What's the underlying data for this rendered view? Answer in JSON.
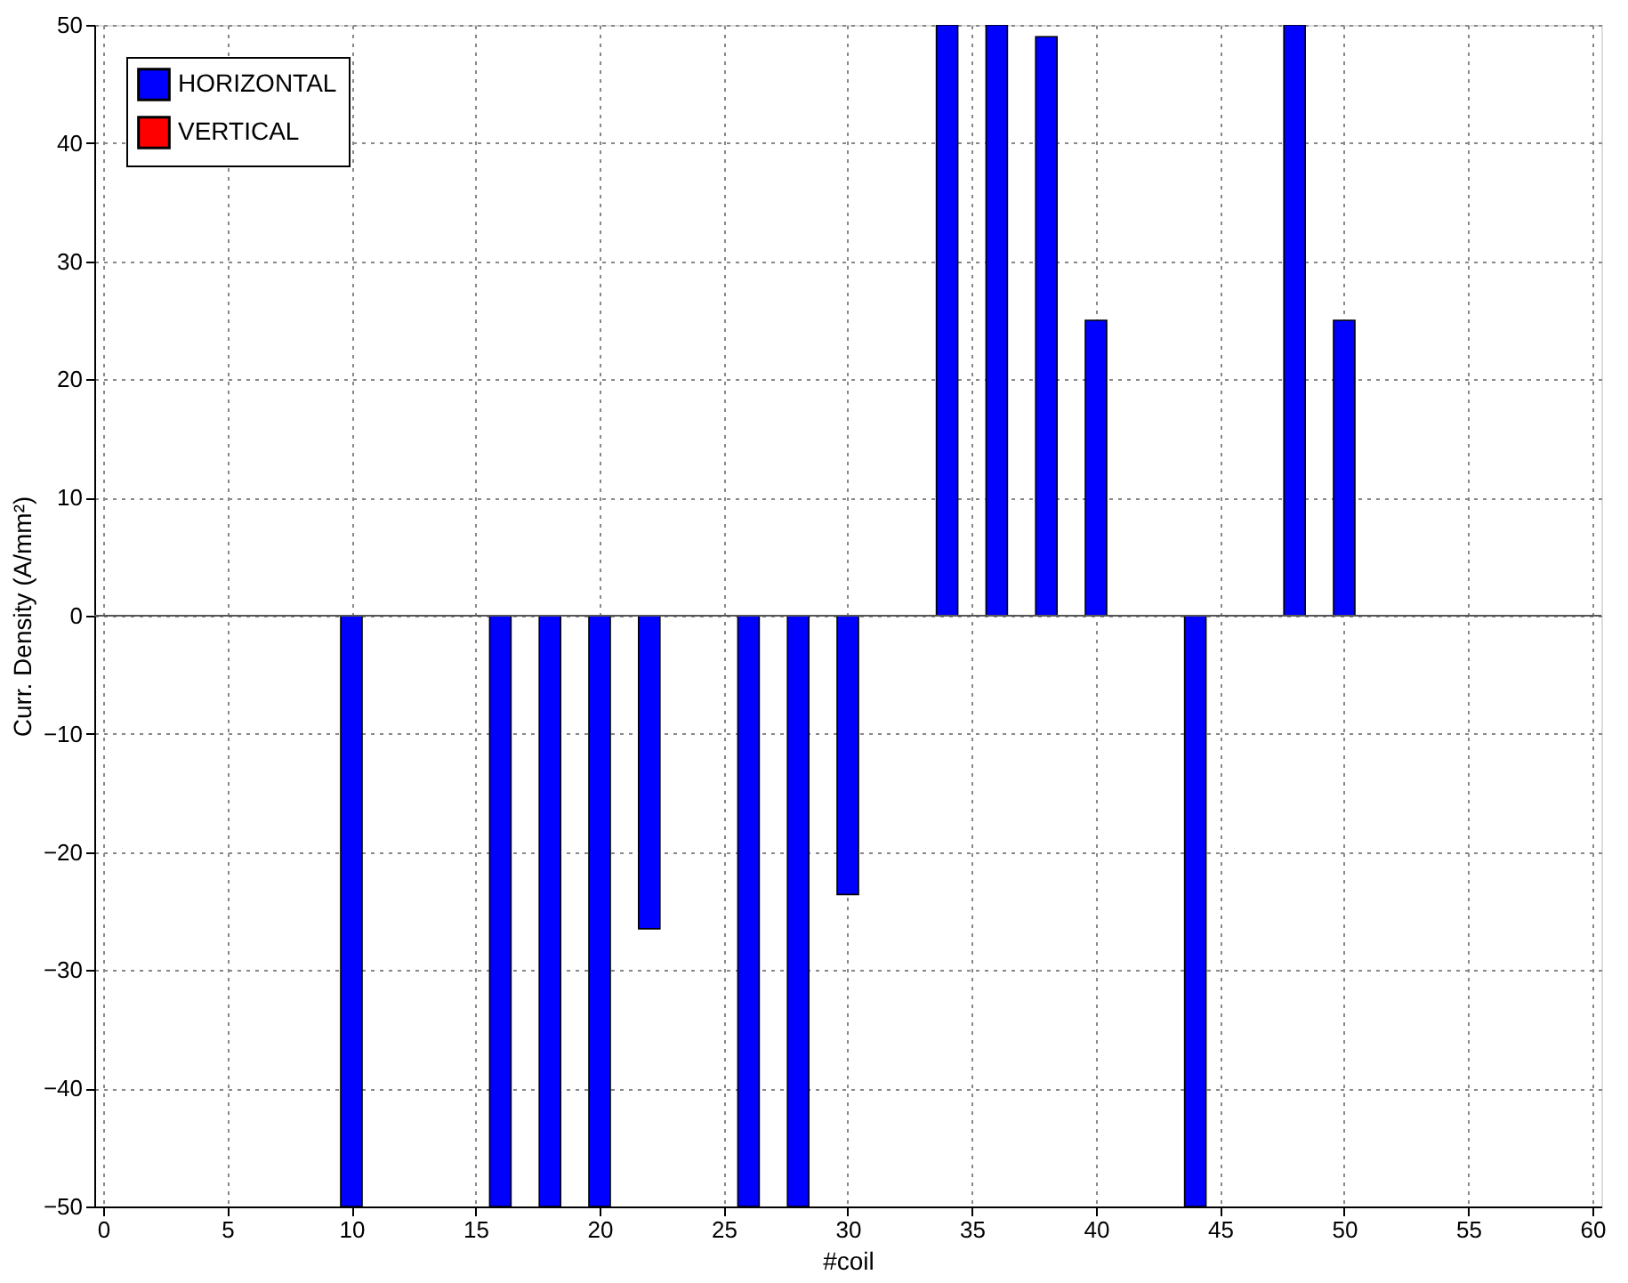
{
  "chart_data": {
    "type": "bar",
    "x": [
      10,
      16,
      18,
      20,
      22,
      26,
      28,
      30,
      34,
      36,
      38,
      40,
      44,
      48,
      50
    ],
    "series": [
      {
        "name": "HORIZONTAL",
        "color": "#0000ff",
        "values": [
          -50,
          -50,
          -50,
          -50,
          -26.5,
          -50,
          -50,
          -23.6,
          50,
          50,
          49,
          25,
          -50,
          50,
          25
        ]
      },
      {
        "name": "VERTICAL",
        "color": "#ff0000",
        "values": [
          null,
          null,
          null,
          null,
          null,
          null,
          null,
          null,
          null,
          null,
          null,
          null,
          null,
          null,
          null
        ]
      }
    ],
    "xlabel": "#coil",
    "ylabel": "Curr. Density (A/mm²)",
    "xlim": [
      0,
      60
    ],
    "xticks": [
      0,
      5,
      10,
      15,
      20,
      25,
      30,
      35,
      40,
      45,
      50,
      55,
      60
    ],
    "ylim": [
      -50,
      50
    ],
    "yticks": [
      -50,
      -40,
      -30,
      -20,
      -10,
      0,
      10,
      20,
      30,
      40,
      50
    ],
    "grid": true,
    "legend": "top left"
  }
}
